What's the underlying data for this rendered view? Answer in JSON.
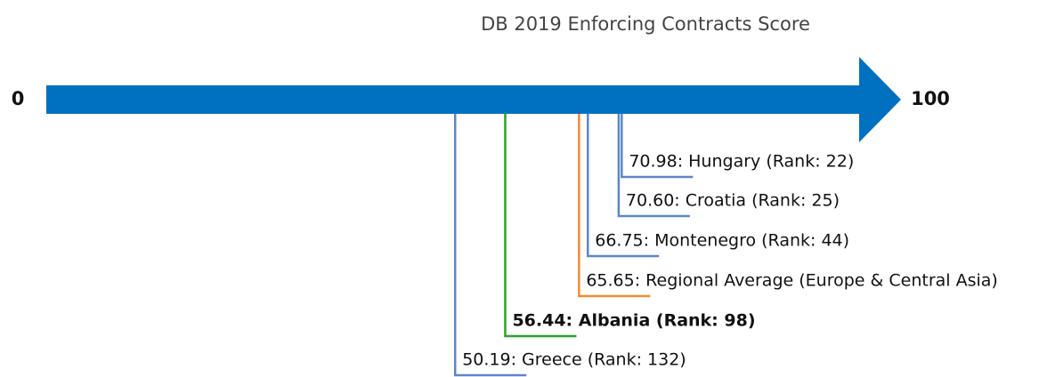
{
  "chart_data": {
    "type": "number-line",
    "title": "DB 2019 Enforcing Contracts Score",
    "xlim": [
      0,
      100
    ],
    "xticks": [
      0,
      100
    ],
    "arrow_color": "#0070c0",
    "values": [
      70.98,
      70.6,
      66.75,
      65.65,
      56.44,
      50.19
    ],
    "value_labels": [
      "70.98: Hungary (Rank: 22)",
      "70.60: Croatia (Rank: 25)",
      "66.75: Montenegro (Rank: 44)",
      "65.65: Regional Average (Europe & Central Asia)",
      "56.44: Albania (Rank: 98)",
      "50.19: Greece (Rank: 132)"
    ],
    "colors": [
      "#5b87c6",
      "#5b87c6",
      "#5b87c6",
      "#f28a30",
      "#2ca02c",
      "#5b87c6"
    ],
    "bold": [
      false,
      false,
      false,
      false,
      true,
      false
    ]
  }
}
